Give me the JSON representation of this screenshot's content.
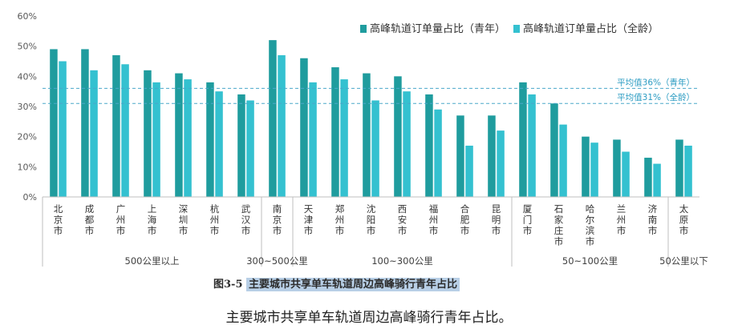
{
  "chart_data": {
    "type": "bar",
    "title": "",
    "xlabel": "",
    "ylabel": "",
    "ylim": [
      0,
      60
    ],
    "yticks": [
      "0%",
      "10%",
      "20%",
      "30%",
      "40%",
      "50%",
      "60%"
    ],
    "grid": false,
    "legend_position": "top-right",
    "categories": [
      "北京市",
      "成都市",
      "广州市",
      "上海市",
      "深圳市",
      "杭州市",
      "武汉市",
      "南京市",
      "天津市",
      "郑州市",
      "沈阳市",
      "西安市",
      "福州市",
      "合肥市",
      "昆明市",
      "厦门市",
      "石家庄市",
      "哈尔滨市",
      "兰州市",
      "济南市",
      "太原市"
    ],
    "series": [
      {
        "name": "高峰轨道订单量占比（青年）",
        "color": "#1f9c9e",
        "values": [
          49,
          49,
          47,
          42,
          41,
          38,
          34,
          52,
          46,
          43,
          41,
          40,
          34,
          27,
          27,
          38,
          31,
          20,
          19,
          13,
          19
        ]
      },
      {
        "name": "高峰轨道订单量占比（全龄）",
        "color": "#34c1d0",
        "values": [
          45,
          42,
          44,
          38,
          39,
          35,
          32,
          47,
          38,
          39,
          32,
          35,
          29,
          17,
          22,
          34,
          24,
          18,
          15,
          11,
          17
        ]
      }
    ],
    "groups": [
      {
        "label": "500公里以上",
        "start": 0,
        "end": 6
      },
      {
        "label": "300~500公里",
        "start": 7,
        "end": 7
      },
      {
        "label": "100~300公里",
        "start": 8,
        "end": 14
      },
      {
        "label": "50~100公里",
        "start": 15,
        "end": 19
      },
      {
        "label": "50公里以下",
        "start": 20,
        "end": 20
      }
    ],
    "reference_lines": [
      {
        "label": "平均值36%（青年）",
        "value": 36
      },
      {
        "label": "平均值31%（全龄）",
        "value": 31
      }
    ]
  },
  "figure_caption": {
    "number": "图3-5",
    "text": "主要城市共享单车轨道周边高峰骑行青年占比"
  },
  "page_caption": "主要城市共享单车轨道周边高峰骑行青年占比。"
}
